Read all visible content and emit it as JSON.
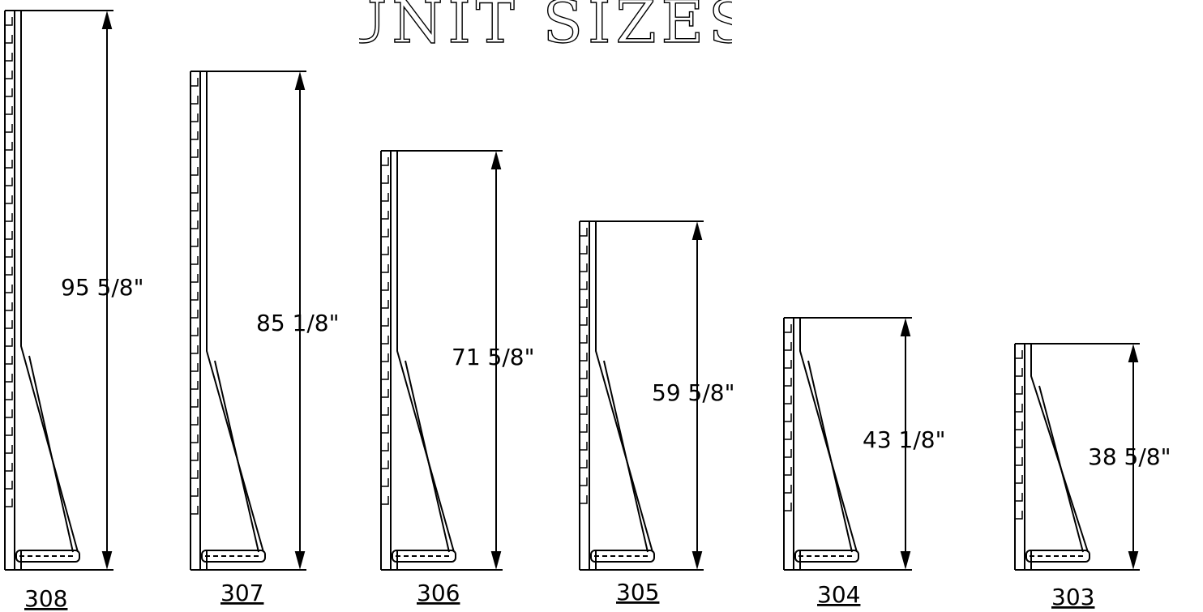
{
  "title": "UNIT SIZES",
  "units": [
    {
      "model": "308",
      "height_label": "95 5/8\"",
      "height_in": 95.625
    },
    {
      "model": "307",
      "height_label": "85 1/8\"",
      "height_in": 85.125
    },
    {
      "model": "306",
      "height_label": "71 5/8\"",
      "height_in": 71.625
    },
    {
      "model": "305",
      "height_label": "59 5/8\"",
      "height_in": 59.625
    },
    {
      "model": "304",
      "height_label": "43 1/8\"",
      "height_in": 43.125
    },
    {
      "model": "303",
      "height_label": "38 5/8\"",
      "height_in": 38.625
    }
  ]
}
